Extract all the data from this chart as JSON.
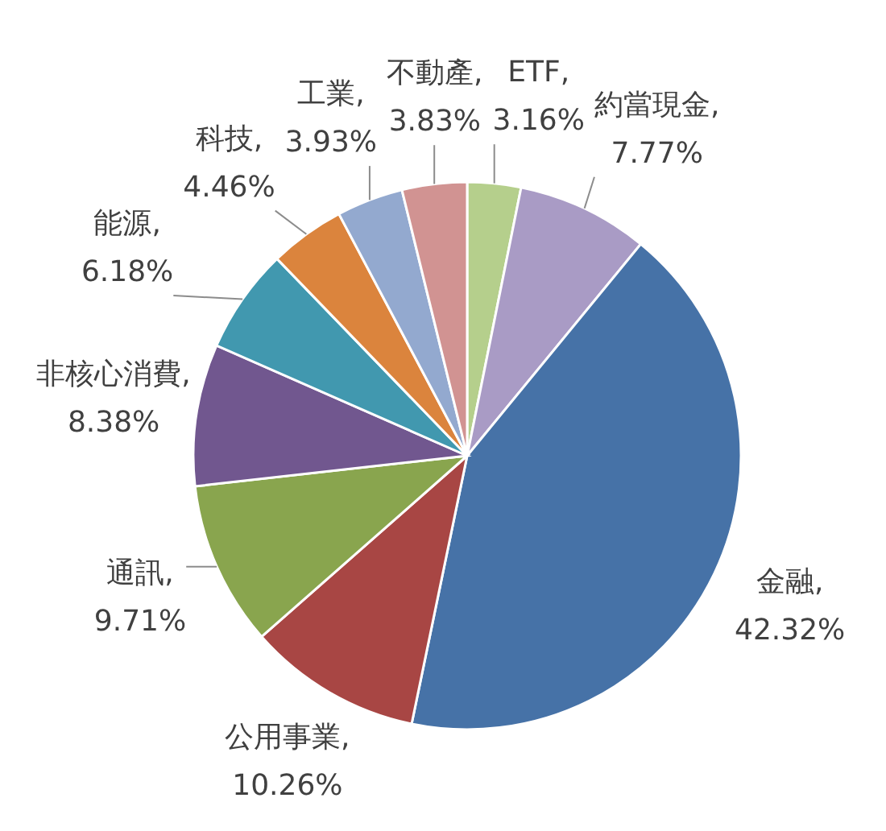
{
  "chart_data": {
    "type": "pie",
    "categories": [
      "ETF",
      "約當現金",
      "金融",
      "公用事業",
      "通訊",
      "非核心消費",
      "能源",
      "科技",
      "工業",
      "不動產"
    ],
    "values": [
      3.16,
      7.77,
      42.32,
      10.26,
      9.71,
      8.38,
      6.18,
      4.46,
      3.93,
      3.83
    ],
    "value_labels": [
      ", 3.16%",
      ", 7.77%",
      ", 42.32%",
      ", 10.26%",
      ", 9.71%",
      ", 8.38%",
      ", 6.18%",
      ", 4.46%",
      ", 3.93%",
      ", 3.83%"
    ],
    "colors": [
      "#b5cf8c",
      "#a99bc5",
      "#4672a7",
      "#a84644",
      "#89a54e",
      "#71578f",
      "#4198af",
      "#db843d",
      "#93a9cf",
      "#d19392"
    ]
  }
}
